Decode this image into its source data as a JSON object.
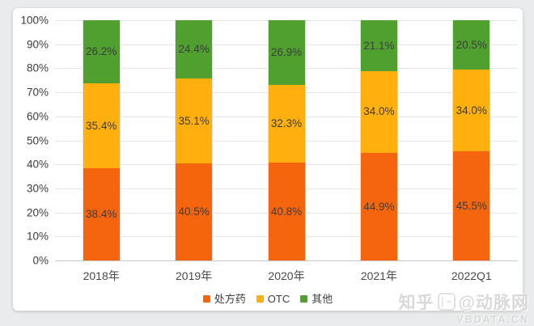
{
  "watermark": {
    "brand": "知乎",
    "handle": "@动脉网",
    "logo_glyph": "∣⌁",
    "site": "VBDATA.CN"
  },
  "chart_data": {
    "type": "bar",
    "subtype": "stacked-percent-column",
    "title": "",
    "xlabel": "",
    "ylabel": "",
    "ylim": [
      0,
      100
    ],
    "grid": {
      "horizontal": true,
      "color": "#e4e4e4",
      "baseline_color": "#c9c9c9"
    },
    "legend_position": "bottom",
    "categories": [
      "2018年",
      "2019年",
      "2020年",
      "2021年",
      "2022Q1"
    ],
    "y_ticks": [
      "100%",
      "90%",
      "80%",
      "70%",
      "60%",
      "50%",
      "40%",
      "30%",
      "20%",
      "10%",
      "0%"
    ],
    "series": [
      {
        "name": "处方药",
        "color": "#F4650E",
        "values": [
          38.4,
          40.5,
          40.8,
          44.9,
          45.5
        ],
        "labels": [
          "38.4%",
          "40.5%",
          "40.8%",
          "44.9%",
          "45.5%"
        ]
      },
      {
        "name": "OTC",
        "color": "#FFAF0E",
        "values": [
          35.4,
          35.1,
          32.3,
          34.0,
          34.0
        ],
        "labels": [
          "35.4%",
          "35.1%",
          "32.3%",
          "34.0%",
          "34.0%"
        ]
      },
      {
        "name": "其他",
        "color": "#4FA02F",
        "values": [
          26.2,
          24.4,
          26.9,
          21.1,
          20.5
        ],
        "labels": [
          "26.2%",
          "24.4%",
          "26.9%",
          "21.1%",
          "20.5%"
        ]
      }
    ],
    "data_label_color": "#3d3d3d"
  }
}
